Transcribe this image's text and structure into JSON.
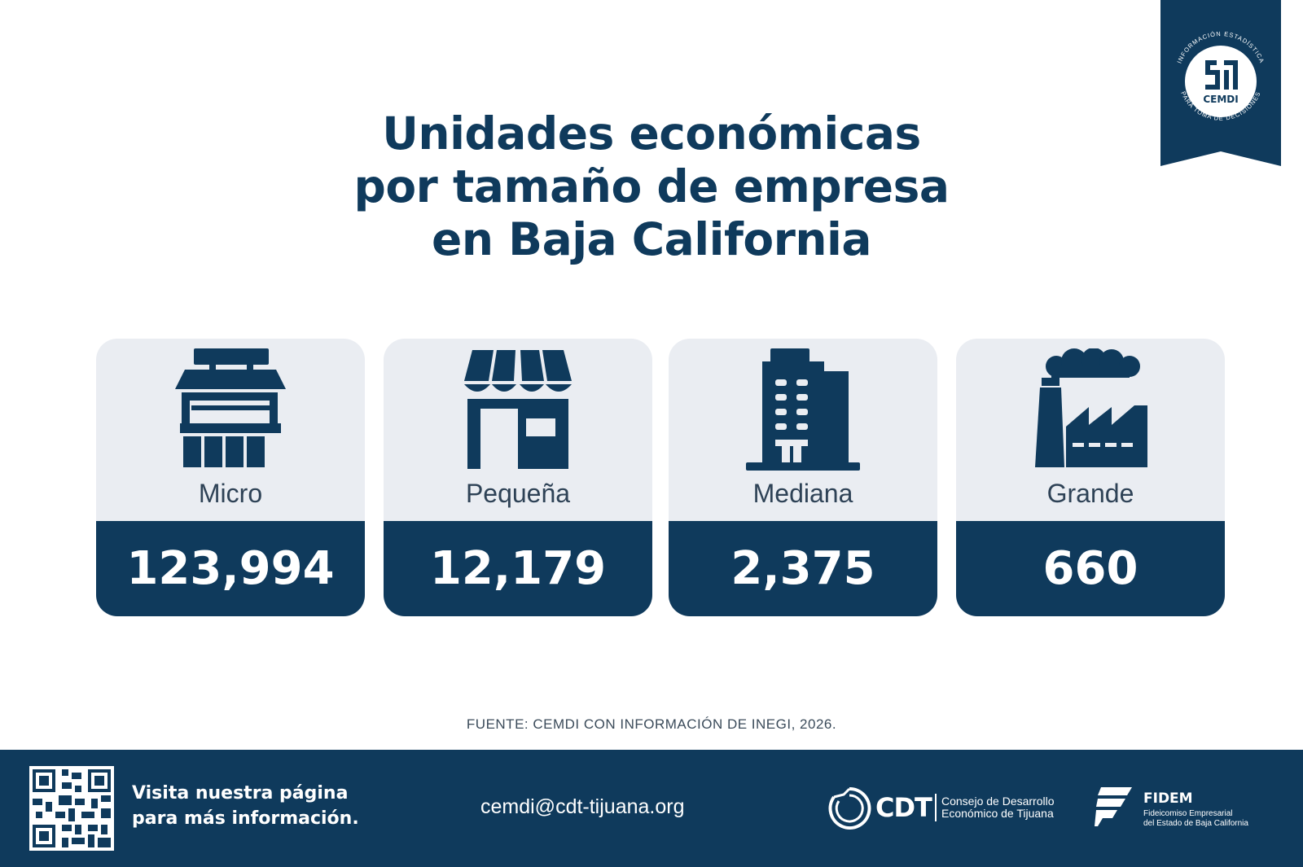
{
  "colors": {
    "primary": "#0f3a5c",
    "card_background": "#eaedf2",
    "white": "#ffffff"
  },
  "badge": {
    "name": "CEMDI",
    "arc_text": "INFORMACIÓN ESTADÍSTICA PARA TOMA DE DECISIONES",
    "icon": "cemdi-logo-icon"
  },
  "title": {
    "line1": "Unidades económicas",
    "line2": "por tamaño de empresa",
    "line3": "en Baja California"
  },
  "cards": [
    {
      "label": "Micro",
      "value": "123,994",
      "icon": "micro-storefront-icon"
    },
    {
      "label": "Pequeña",
      "value": "12,179",
      "icon": "small-shop-awning-icon"
    },
    {
      "label": "Mediana",
      "value": "2,375",
      "icon": "office-building-icon"
    },
    {
      "label": "Grande",
      "value": "660",
      "icon": "factory-icon"
    }
  ],
  "source": "FUENTE: CEMDI CON INFORMACIÓN DE INEGI, 2026.",
  "footer": {
    "cta_line1": "Visita nuestra página",
    "cta_line2": "para más información.",
    "qr_icon": "qr-code-icon",
    "email": "cemdi@cdt-tijuana.org",
    "cdt": {
      "name": "CDT",
      "desc_line1": "Consejo de Desarrollo",
      "desc_line2": "Económico de Tijuana",
      "icon": "cdt-logo-icon"
    },
    "fidem": {
      "name": "FIDEM",
      "desc_line1": "Fideicomiso Empresarial",
      "desc_line2": "del Estado de Baja California",
      "icon": "fidem-logo-icon"
    }
  }
}
